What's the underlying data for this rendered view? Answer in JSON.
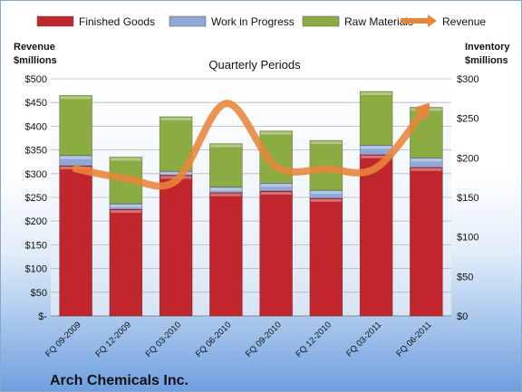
{
  "chart_data": {
    "type": "bar",
    "stacked": true,
    "title": "Quarterly Periods",
    "company": "Arch Chemicals Inc.",
    "y_left_label": [
      "Revenue",
      "$millions"
    ],
    "y_right_label": [
      "Inventory",
      "$millions"
    ],
    "categories": [
      "FQ 09-2009",
      "FQ 12-2009",
      "FQ 03-2010",
      "FQ 06-2010",
      "FQ 09-2010",
      "FQ 12-2010",
      "FQ 03-2011",
      "FQ 06-2011"
    ],
    "y_left_ticks": [
      "$-",
      "$50",
      "$100",
      "$150",
      "$200",
      "$250",
      "$300",
      "$350",
      "$400",
      "$450",
      "$500"
    ],
    "y_right_ticks": [
      "$0",
      "$50",
      "$100",
      "$150",
      "$200",
      "$250",
      "$300"
    ],
    "ylim_left": [
      0,
      500
    ],
    "ylim_right": [
      0,
      300
    ],
    "series": [
      {
        "name": "Finished Goods",
        "axis": "right",
        "color": "#c0262b",
        "values": [
          190,
          135,
          178,
          156,
          158,
          149,
          204,
          188
        ]
      },
      {
        "name": "Work in Progress",
        "axis": "right",
        "color": "#8fa8d6",
        "values": [
          13,
          7,
          5,
          7,
          10,
          10,
          12,
          12
        ]
      },
      {
        "name": "Raw Materials",
        "axis": "right",
        "color": "#8aac42",
        "values": [
          76,
          59,
          69,
          55,
          66,
          63,
          68,
          64
        ]
      }
    ],
    "line_series": {
      "name": "Revenue",
      "axis": "left",
      "color": "#e8853a",
      "values": [
        310,
        290,
        285,
        448,
        315,
        310,
        312,
        440
      ]
    },
    "grid": true,
    "legend": "top"
  }
}
